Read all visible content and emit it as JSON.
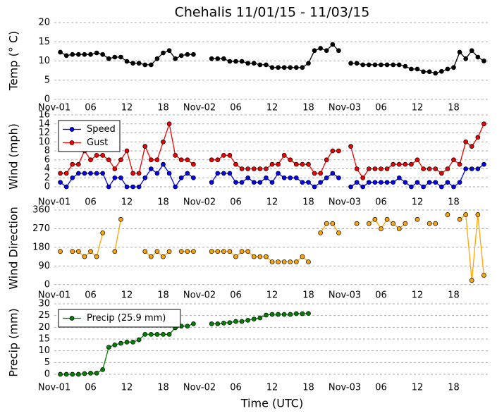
{
  "chart_data": {
    "title": "Chehalis 11/01/15 - 11/03/15",
    "xlabel": "Time (UTC)",
    "x": [
      1,
      2,
      3,
      4,
      5,
      6,
      7,
      8,
      9,
      10,
      11,
      12,
      13,
      14,
      15,
      16,
      17,
      18,
      19,
      20,
      21,
      22,
      23,
      24,
      25,
      26,
      27,
      28,
      29,
      30,
      31,
      32,
      33,
      34,
      35,
      36,
      37,
      38,
      39,
      40,
      41,
      42,
      43,
      44,
      45,
      46,
      47,
      48,
      49,
      50,
      51,
      52,
      53,
      54,
      55,
      56,
      57,
      58,
      59,
      60,
      61,
      62,
      63,
      64,
      65,
      66,
      67,
      68,
      69,
      70,
      71
    ],
    "xlim": [
      0,
      72
    ],
    "xticks": [
      {
        "value": 0,
        "label": "Nov-01"
      },
      {
        "value": 6,
        "label": "06"
      },
      12,
      18,
      {
        "value": 24,
        "label": "Nov-02"
      },
      {
        "value": 30,
        "label": "06"
      },
      {
        "value": 36,
        "label": "12"
      },
      {
        "value": 42,
        "label": "18"
      },
      {
        "value": 48,
        "label": "Nov-03"
      },
      {
        "value": 54,
        "label": "06"
      },
      {
        "value": 60,
        "label": "12"
      },
      {
        "value": 66,
        "label": "18"
      }
    ],
    "panels": [
      {
        "type": "line",
        "ylabel": "Temp (° C)",
        "ylim": [
          0,
          20
        ],
        "yticks": [
          0,
          5,
          10,
          15,
          20
        ],
        "grid": true,
        "series": [
          {
            "color": "#000000",
            "values": [
              12.3,
              11.4,
              11.7,
              11.7,
              11.7,
              11.7,
              12.1,
              11.7,
              10.6,
              11.0,
              11.0,
              9.9,
              9.4,
              9.4,
              9.0,
              9.0,
              10.6,
              12.1,
              12.7,
              10.6,
              11.4,
              11.7,
              11.7,
              null,
              null,
              10.6,
              10.6,
              10.6,
              9.9,
              9.9,
              9.9,
              9.4,
              9.4,
              9.0,
              9.0,
              8.3,
              8.3,
              8.3,
              8.3,
              8.3,
              8.3,
              9.4,
              12.7,
              13.3,
              12.7,
              14.3,
              12.7,
              null,
              9.4,
              9.4,
              9.0,
              9.0,
              9.0,
              9.0,
              9.0,
              9.0,
              9.0,
              8.6,
              7.9,
              7.9,
              7.2,
              7.2,
              6.8,
              7.3,
              7.9,
              8.3,
              12.3,
              10.6,
              12.7,
              11.0,
              10.0
            ]
          }
        ]
      },
      {
        "type": "line",
        "ylabel": "Wind (mph)",
        "ylim": [
          -2.5,
          16
        ],
        "yticks": [
          0,
          2,
          4,
          6,
          8,
          10,
          12,
          14,
          16
        ],
        "grid": true,
        "legend": "upper left",
        "series": [
          {
            "name": "Speed",
            "color": "#0000ee",
            "values": [
              1,
              0,
              2,
              3,
              3,
              3,
              3,
              3,
              0,
              2,
              2,
              0,
              0,
              0,
              2,
              4,
              3,
              5,
              3,
              0,
              2,
              3,
              2,
              null,
              null,
              1,
              3,
              3,
              3,
              1,
              1,
              2,
              1,
              1,
              2,
              1,
              3,
              2,
              2,
              2,
              1,
              1,
              0,
              1,
              2,
              3,
              2,
              null,
              0,
              1,
              0,
              1,
              1,
              1,
              1,
              1,
              2,
              1,
              0,
              1,
              0,
              1,
              1,
              0,
              1,
              0,
              1,
              4,
              4,
              4,
              5
            ]
          },
          {
            "name": "Gust",
            "color": "#ee0000",
            "values": [
              3,
              3,
              5,
              5,
              8,
              6,
              7,
              7,
              6,
              4,
              6,
              8,
              3,
              3,
              9,
              6,
              6,
              10,
              14,
              7,
              6,
              6,
              5,
              null,
              null,
              6,
              6,
              7,
              7,
              5,
              4,
              4,
              4,
              4,
              4,
              5,
              5,
              7,
              6,
              5,
              5,
              5,
              3,
              3,
              6,
              8,
              8,
              null,
              9,
              4,
              2,
              4,
              4,
              4,
              4,
              5,
              5,
              5,
              5,
              6,
              4,
              4,
              4,
              3,
              4,
              6,
              5,
              10,
              9,
              11,
              14
            ]
          }
        ]
      },
      {
        "type": "line",
        "ylabel": "Wind Direction",
        "ylim": [
          -45,
          360
        ],
        "yticks": [
          0,
          90,
          180,
          270,
          360
        ],
        "grid": true,
        "series": [
          {
            "color": "#ffa500",
            "values": [
              160,
              null,
              160,
              160,
              135,
              160,
              135,
              250,
              null,
              160,
              315,
              null,
              null,
              null,
              160,
              135,
              160,
              135,
              160,
              null,
              160,
              160,
              160,
              null,
              null,
              160,
              160,
              160,
              160,
              135,
              160,
              160,
              135,
              135,
              135,
              110,
              110,
              110,
              110,
              110,
              135,
              110,
              null,
              250,
              295,
              295,
              250,
              null,
              null,
              295,
              null,
              295,
              315,
              270,
              315,
              295,
              270,
              295,
              null,
              315,
              null,
              295,
              295,
              null,
              338,
              null,
              315,
              338,
              20,
              338,
              45
            ]
          }
        ]
      },
      {
        "type": "line",
        "ylabel": "Precip (mm)",
        "ylim": [
          -3,
          30
        ],
        "yticks": [
          0,
          5,
          10,
          15,
          20,
          25,
          30
        ],
        "grid": true,
        "legend": "upper left",
        "series": [
          {
            "name": "Precip (25.9 mm)",
            "color": "#008000",
            "values": [
              0,
              0,
              0,
              0,
              0.3,
              0.5,
              0.5,
              2,
              11.5,
              12.5,
              13.2,
              13.7,
              13.7,
              14.7,
              17,
              17,
              17,
              17,
              17,
              19.8,
              20.5,
              20.5,
              21.5,
              null,
              null,
              21.5,
              21.5,
              21.8,
              22,
              22.5,
              22.5,
              23,
              23.5,
              24,
              25.2,
              25.5,
              25.5,
              25.5,
              25.5,
              25.8,
              25.8,
              25.9,
              null,
              null,
              null,
              null,
              null,
              null,
              null,
              null,
              null,
              null,
              null,
              null,
              null,
              null,
              null,
              null,
              null,
              null,
              null,
              null,
              null,
              null,
              null,
              null,
              null,
              null,
              null,
              null,
              null
            ]
          }
        ]
      }
    ]
  }
}
